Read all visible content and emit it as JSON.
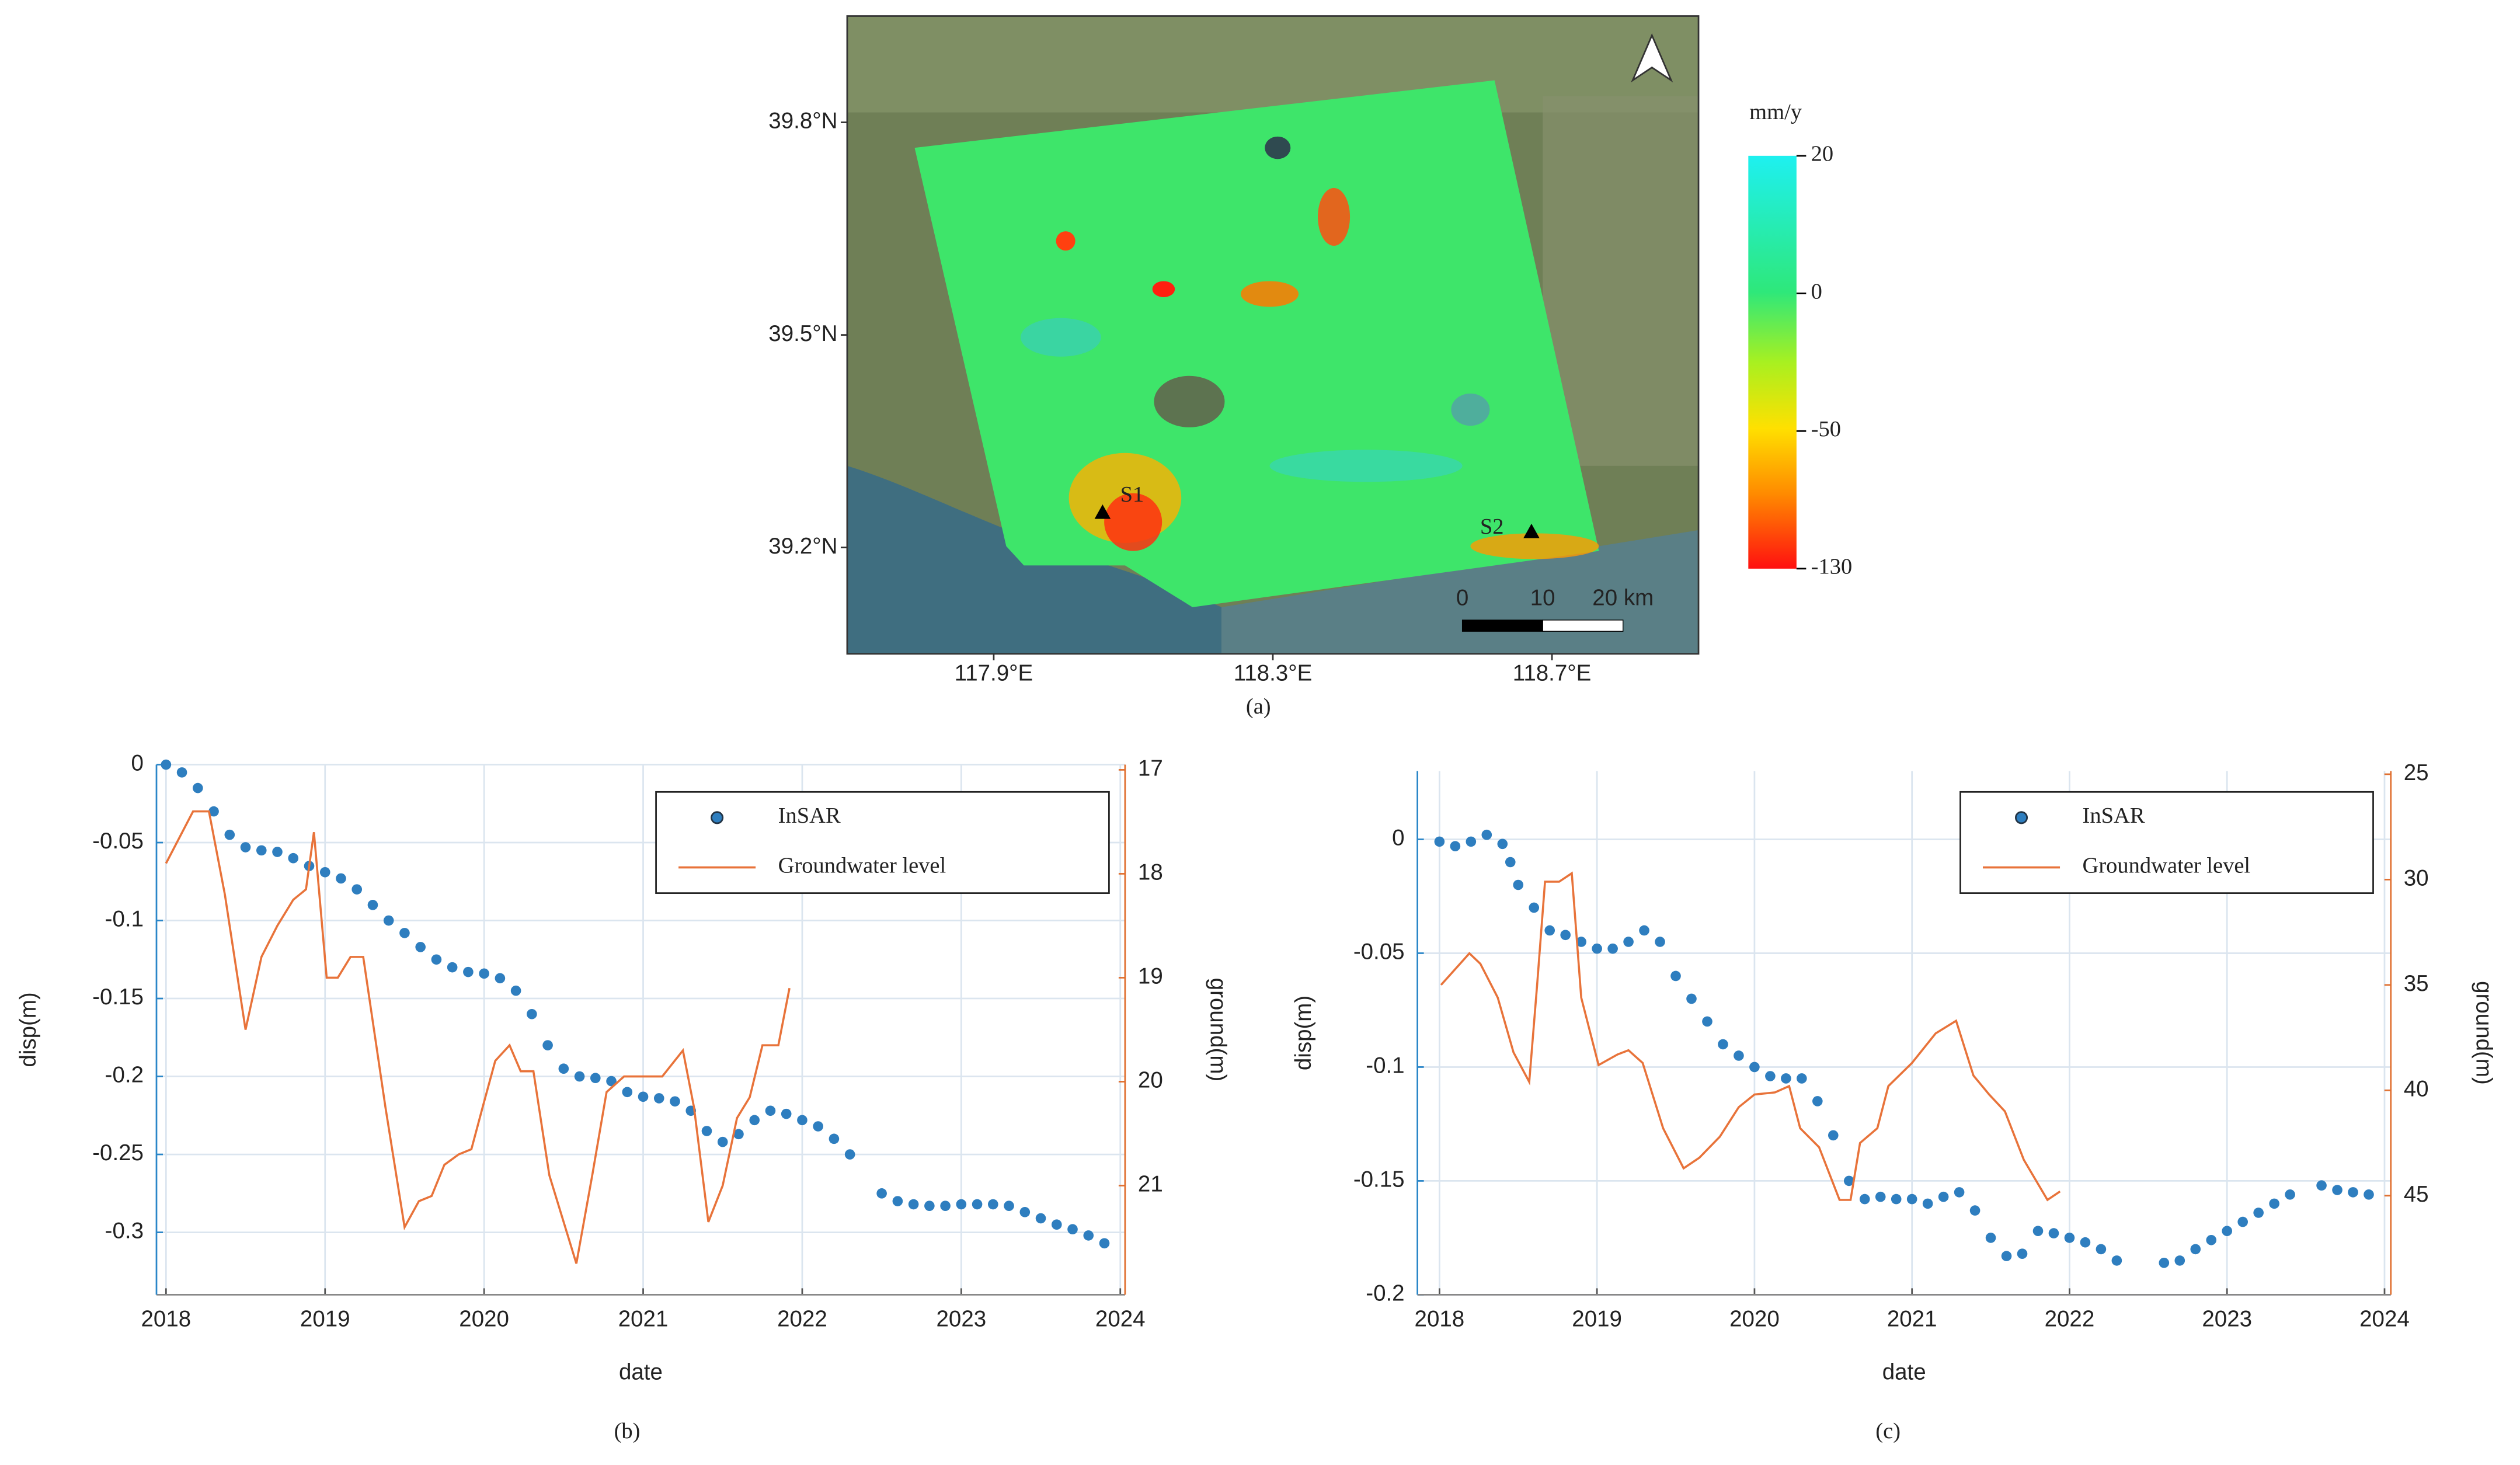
{
  "figure_a": {
    "caption": "(a)",
    "xlim": [
      117.69,
      118.91
    ],
    "ylim": [
      39.05,
      39.95
    ],
    "xticks": [
      {
        "value": 117.9,
        "label": "117.9°E"
      },
      {
        "value": 118.3,
        "label": "118.3°E"
      },
      {
        "value": 118.7,
        "label": "118.7°E"
      }
    ],
    "yticks": [
      {
        "value": 39.8,
        "label": "39.8°N"
      },
      {
        "value": 39.5,
        "label": "39.5°N"
      },
      {
        "value": 39.2,
        "label": "39.2°N"
      }
    ],
    "colorbar": {
      "label": "mm/y",
      "ticks": [
        20,
        0,
        -50,
        -130
      ]
    },
    "stations": [
      "S1",
      "S2"
    ],
    "scale_bar": [
      0,
      10,
      {
        "value": 20,
        "label": "20 km"
      }
    ]
  },
  "chart_data": [
    {
      "type": "line",
      "caption": "(b)",
      "x_label": "date",
      "y_label": "disp(m)",
      "y2_label": "ground(m)",
      "xlim": [
        2017.94,
        2024.03
      ],
      "xticks": [
        2018,
        2019,
        2020,
        2021,
        2022,
        2023,
        2024
      ],
      "ylim": [
        -0.34,
        0
      ],
      "yticks": [
        -0.3,
        -0.25,
        -0.2,
        -0.15,
        -0.1,
        -0.05,
        0
      ],
      "y2lim": [
        16.95,
        22.05
      ],
      "y2ticks": [
        17,
        18,
        19,
        20,
        21
      ],
      "y2_reversed": true,
      "grid": true,
      "legend": "upper right",
      "series": [
        {
          "name": "InSAR",
          "mode": "markers",
          "color": "#2e7ebf",
          "x": [
            2018.0,
            2018.1,
            2018.2,
            2018.3,
            2018.4,
            2018.5,
            2018.6,
            2018.7,
            2018.8,
            2018.9,
            2019.0,
            2019.1,
            2019.2,
            2019.3,
            2019.4,
            2019.5,
            2019.6,
            2019.7,
            2019.8,
            2019.9,
            2020.0,
            2020.1,
            2020.2,
            2020.3,
            2020.4,
            2020.5,
            2020.6,
            2020.7,
            2020.8,
            2020.9,
            2021.0,
            2021.1,
            2021.2,
            2021.3,
            2021.4,
            2021.5,
            2021.6,
            2021.7,
            2021.8,
            2021.9,
            2022.0,
            2022.1,
            2022.2,
            2022.3,
            2022.5,
            2022.6,
            2022.7,
            2022.8,
            2022.9,
            2023.0,
            2023.1,
            2023.2,
            2023.3,
            2023.4,
            2023.5,
            2023.6,
            2023.7,
            2023.8,
            2023.9
          ],
          "values": [
            0,
            -0.005,
            -0.015,
            -0.03,
            -0.045,
            -0.053,
            -0.055,
            -0.056,
            -0.06,
            -0.065,
            -0.069,
            -0.073,
            -0.08,
            -0.09,
            -0.1,
            -0.108,
            -0.117,
            -0.125,
            -0.13,
            -0.133,
            -0.134,
            -0.137,
            -0.145,
            -0.16,
            -0.18,
            -0.195,
            -0.2,
            -0.201,
            -0.203,
            -0.21,
            -0.213,
            -0.214,
            -0.216,
            -0.222,
            -0.235,
            -0.242,
            -0.237,
            -0.228,
            -0.222,
            -0.224,
            -0.228,
            -0.232,
            -0.24,
            -0.25,
            -0.275,
            -0.28,
            -0.282,
            -0.283,
            -0.283,
            -0.282,
            -0.282,
            -0.282,
            -0.283,
            -0.287,
            -0.291,
            -0.295,
            -0.298,
            -0.302,
            -0.307
          ]
        },
        {
          "name": "Groundwater level",
          "mode": "line",
          "axis": "y2",
          "color": "#e8733a",
          "x": [
            2018.0,
            2018.17,
            2018.27,
            2018.37,
            2018.5,
            2018.6,
            2018.7,
            2018.8,
            2018.88,
            2018.93,
            2019.01,
            2019.08,
            2019.16,
            2019.24,
            2019.38,
            2019.5,
            2019.59,
            2019.67,
            2019.75,
            2019.84,
            2019.92,
            2019.99,
            2020.07,
            2020.16,
            2020.23,
            2020.31,
            2020.41,
            2020.58,
            2020.68,
            2020.77,
            2020.88,
            2021.0,
            2021.12,
            2021.25,
            2021.32,
            2021.41,
            2021.5,
            2021.59,
            2021.67,
            2021.75,
            2021.85,
            2021.92
          ],
          "values": [
            17.9,
            17.4,
            17.4,
            18.2,
            19.5,
            18.8,
            18.5,
            18.25,
            18.15,
            17.6,
            19.0,
            19.0,
            18.8,
            18.8,
            20.25,
            21.4,
            21.15,
            21.1,
            20.8,
            20.7,
            20.65,
            20.25,
            19.8,
            19.65,
            19.9,
            19.9,
            20.9,
            21.75,
            20.9,
            20.1,
            19.95,
            19.95,
            19.95,
            19.7,
            20.25,
            21.35,
            21.0,
            20.35,
            20.15,
            19.65,
            19.65,
            19.1
          ]
        }
      ]
    },
    {
      "type": "line",
      "caption": "(c)",
      "x_label": "date",
      "y_label": "disp(m)",
      "y2_label": "ground(m)",
      "xlim": [
        2017.86,
        2024.04
      ],
      "xticks": [
        2018,
        2019,
        2020,
        2021,
        2022,
        2023,
        2024
      ],
      "ylim": [
        -0.2,
        0.03
      ],
      "yticks": [
        -0.2,
        -0.15,
        -0.1,
        -0.05,
        0
      ],
      "y2lim": [
        24.85,
        49.7
      ],
      "y2ticks": [
        25,
        30,
        35,
        40,
        45
      ],
      "y2_reversed": true,
      "grid": true,
      "legend": "upper right",
      "series": [
        {
          "name": "InSAR",
          "mode": "markers",
          "color": "#2e7ebf",
          "x": [
            2018.0,
            2018.1,
            2018.2,
            2018.3,
            2018.4,
            2018.45,
            2018.5,
            2018.6,
            2018.7,
            2018.8,
            2018.9,
            2019.0,
            2019.1,
            2019.2,
            2019.3,
            2019.4,
            2019.5,
            2019.6,
            2019.7,
            2019.8,
            2019.9,
            2020.0,
            2020.1,
            2020.2,
            2020.3,
            2020.4,
            2020.5,
            2020.6,
            2020.7,
            2020.8,
            2020.9,
            2021.0,
            2021.1,
            2021.2,
            2021.3,
            2021.4,
            2021.5,
            2021.6,
            2021.7,
            2021.8,
            2021.9,
            2022.0,
            2022.1,
            2022.2,
            2022.3,
            2022.6,
            2022.7,
            2022.8,
            2022.9,
            2023.0,
            2023.1,
            2023.2,
            2023.3,
            2023.4,
            2023.6,
            2023.7,
            2023.8,
            2023.9
          ],
          "values": [
            -0.001,
            -0.003,
            -0.001,
            0.002,
            -0.002,
            -0.01,
            -0.02,
            -0.03,
            -0.04,
            -0.042,
            -0.045,
            -0.048,
            -0.048,
            -0.045,
            -0.04,
            -0.045,
            -0.06,
            -0.07,
            -0.08,
            -0.09,
            -0.095,
            -0.1,
            -0.104,
            -0.105,
            -0.105,
            -0.115,
            -0.13,
            -0.15,
            -0.158,
            -0.157,
            -0.158,
            -0.158,
            -0.16,
            -0.157,
            -0.155,
            -0.163,
            -0.175,
            -0.183,
            -0.182,
            -0.172,
            -0.173,
            -0.175,
            -0.177,
            -0.18,
            -0.185,
            -0.186,
            -0.185,
            -0.18,
            -0.176,
            -0.172,
            -0.168,
            -0.164,
            -0.16,
            -0.156,
            -0.152,
            -0.154,
            -0.155,
            -0.156
          ]
        },
        {
          "name": "Groundwater level",
          "mode": "line",
          "axis": "y2",
          "color": "#e8733a",
          "x": [
            2018.01,
            2018.19,
            2018.26,
            2018.37,
            2018.47,
            2018.57,
            2018.62,
            2018.67,
            2018.76,
            2018.84,
            2018.9,
            2019.01,
            2019.13,
            2019.2,
            2019.29,
            2019.42,
            2019.55,
            2019.65,
            2019.78,
            2019.9,
            2020.0,
            2020.13,
            2020.22,
            2020.29,
            2020.41,
            2020.54,
            2020.61,
            2020.67,
            2020.78,
            2020.85,
            2021.0,
            2021.15,
            2021.28,
            2021.39,
            2021.49,
            2021.59,
            2021.71,
            2021.86,
            2021.94
          ],
          "values": [
            35.0,
            33.5,
            34.0,
            35.6,
            38.2,
            39.6,
            35.0,
            30.1,
            30.1,
            29.7,
            35.6,
            38.8,
            38.3,
            38.1,
            38.7,
            41.8,
            43.7,
            43.2,
            42.2,
            40.8,
            40.2,
            40.1,
            39.8,
            41.8,
            42.7,
            45.2,
            45.2,
            42.5,
            41.8,
            39.8,
            38.7,
            37.3,
            36.7,
            39.3,
            40.2,
            41.0,
            43.3,
            45.2,
            44.8
          ]
        }
      ]
    }
  ]
}
